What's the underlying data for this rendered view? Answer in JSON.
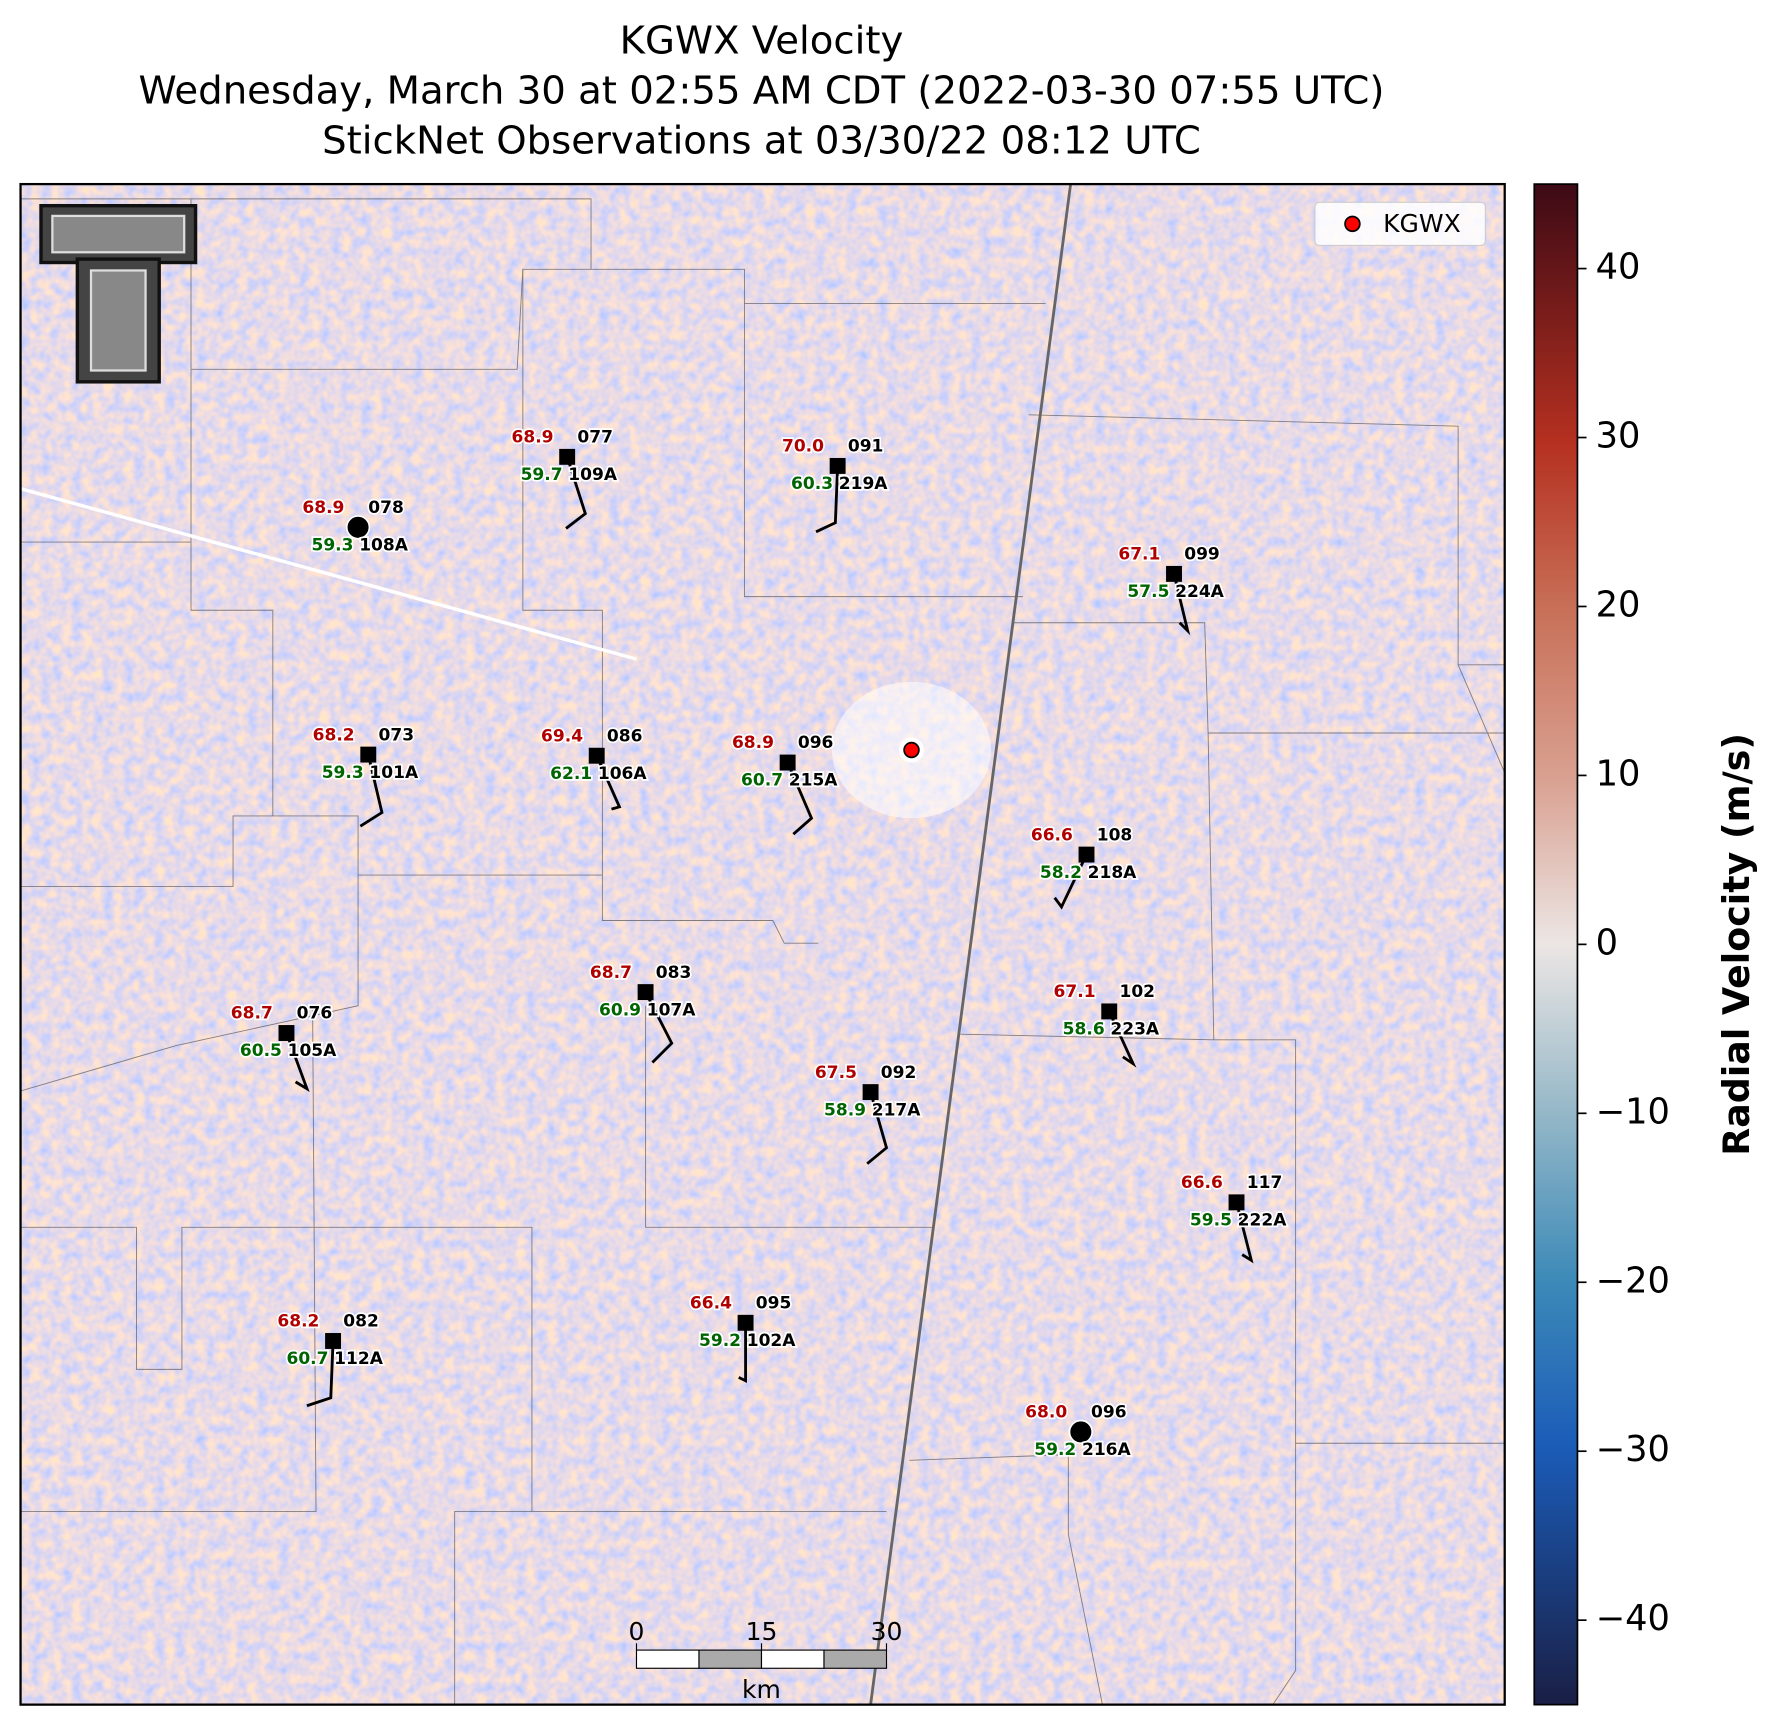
{
  "header": {
    "title": [
      "KGWX Velocity",
      "Wednesday, March 30 at 02:55 AM CDT (2022-03-30 07:55 UTC)",
      "StickNet Observations at 03/30/22 08:12 UTC"
    ]
  },
  "legend": {
    "label": "KGWX",
    "color": "#ff0000"
  },
  "stations": [
    {
      "id": "108A",
      "temp": "68.9",
      "dew": "59.3",
      "code": "078"
    },
    {
      "id": "109A",
      "temp": "68.9",
      "dew": "59.7",
      "code": "077"
    },
    {
      "id": "219A",
      "temp": "70.0",
      "dew": "60.3",
      "code": "091"
    },
    {
      "id": "224A",
      "temp": "67.1",
      "dew": "57.5",
      "code": "099"
    },
    {
      "id": "101A",
      "temp": "68.2",
      "dew": "59.3",
      "code": "073"
    },
    {
      "id": "106A",
      "temp": "69.4",
      "dew": "62.1",
      "code": "086"
    },
    {
      "id": "215A",
      "temp": "68.9",
      "dew": "60.7",
      "code": "096"
    },
    {
      "id": "218A",
      "temp": "66.6",
      "dew": "58.2",
      "code": "108"
    },
    {
      "id": "107A",
      "temp": "68.7",
      "dew": "60.9",
      "code": "083"
    },
    {
      "id": "223A",
      "temp": "67.1",
      "dew": "58.6",
      "code": "102"
    },
    {
      "id": "105A",
      "temp": "68.7",
      "dew": "60.5",
      "code": "076"
    },
    {
      "id": "217A",
      "temp": "67.5",
      "dew": "58.9",
      "code": "092"
    },
    {
      "id": "222A",
      "temp": "66.6",
      "dew": "59.5",
      "code": "117"
    },
    {
      "id": "112A",
      "temp": "68.2",
      "dew": "60.7",
      "code": "082"
    },
    {
      "id": "102A",
      "temp": "66.4",
      "dew": "59.2",
      "code": "095"
    },
    {
      "id": "216A",
      "temp": "68.0",
      "dew": "59.2",
      "code": "096"
    }
  ],
  "colorbar": {
    "label": "Radial Velocity (m/s)",
    "lim": [
      -45,
      45
    ],
    "ticks": [
      {
        "value": -40,
        "label": "−40"
      },
      {
        "value": -30,
        "label": "−30"
      },
      {
        "value": -20,
        "label": "−20"
      },
      {
        "value": -10,
        "label": "−10"
      },
      0,
      10,
      20,
      30,
      40
    ]
  },
  "scalebar": {
    "unit": "km",
    "ticks": [
      0,
      15,
      30
    ]
  }
}
